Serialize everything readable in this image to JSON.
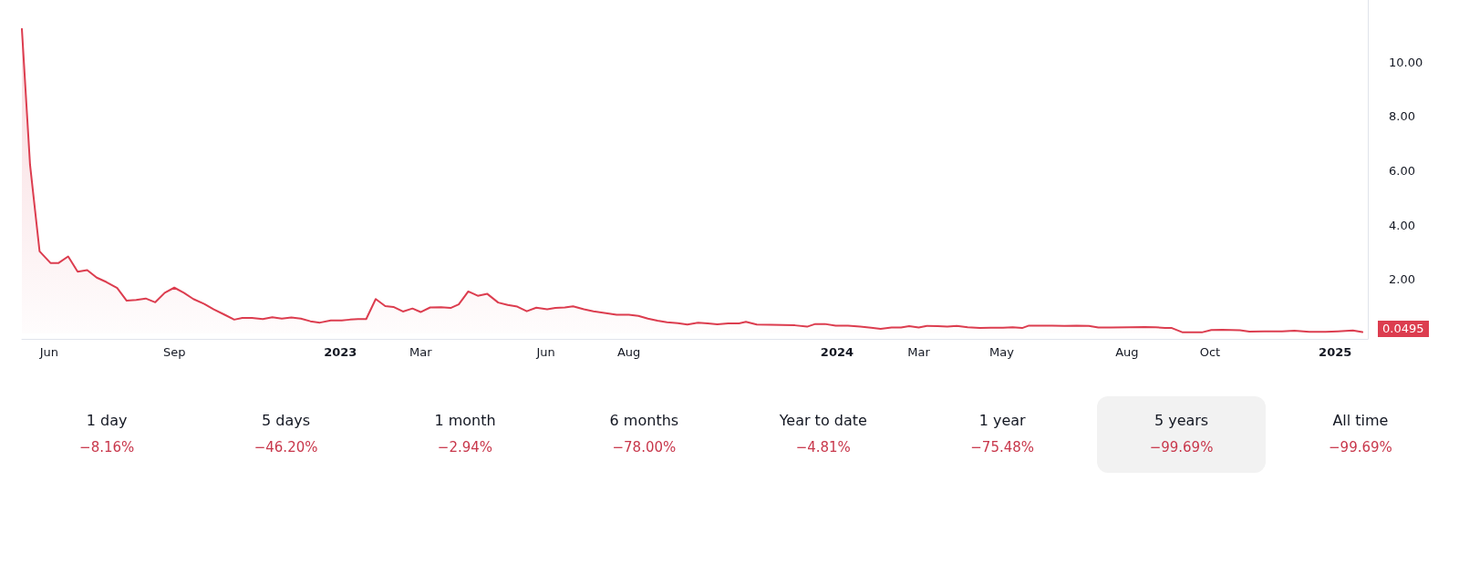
{
  "chart_data": {
    "type": "area",
    "color": "#dc3d4f",
    "x": [
      "2022-05-12",
      "2022-05-18",
      "2022-05-25",
      "2022-06-02",
      "2022-06-08",
      "2022-06-15",
      "2022-06-22",
      "2022-06-29",
      "2022-07-06",
      "2022-07-13",
      "2022-07-21",
      "2022-07-28",
      "2022-08-04",
      "2022-08-11",
      "2022-08-18",
      "2022-08-25",
      "2022-09-01",
      "2022-09-08",
      "2022-09-15",
      "2022-09-23",
      "2022-09-30",
      "2022-10-08",
      "2022-10-15",
      "2022-10-21",
      "2022-10-28",
      "2022-11-05",
      "2022-11-12",
      "2022-11-19",
      "2022-11-26",
      "2022-12-03",
      "2022-12-10",
      "2022-12-17",
      "2022-12-25",
      "2023-01-02",
      "2023-01-08",
      "2023-01-14",
      "2023-01-20",
      "2023-01-27",
      "2023-02-03",
      "2023-02-09",
      "2023-02-16",
      "2023-02-23",
      "2023-03-01",
      "2023-03-08",
      "2023-03-16",
      "2023-03-23",
      "2023-03-29",
      "2023-04-05",
      "2023-04-12",
      "2023-04-19",
      "2023-04-27",
      "2023-05-04",
      "2023-05-11",
      "2023-05-18",
      "2023-05-25",
      "2023-06-02",
      "2023-06-08",
      "2023-06-15",
      "2023-06-21",
      "2023-06-29",
      "2023-07-06",
      "2023-07-14",
      "2023-07-23",
      "2023-08-01",
      "2023-08-08",
      "2023-08-15",
      "2023-08-22",
      "2023-08-29",
      "2023-09-06",
      "2023-09-13",
      "2023-09-21",
      "2023-09-28",
      "2023-10-05",
      "2023-10-13",
      "2023-10-21",
      "2023-10-26",
      "2023-11-03",
      "2023-11-13",
      "2023-11-22",
      "2023-12-01",
      "2023-12-10",
      "2023-12-16",
      "2023-12-23",
      "2023-12-31",
      "2024-01-09",
      "2024-01-18",
      "2024-01-26",
      "2024-02-02",
      "2024-02-10",
      "2024-02-17",
      "2024-02-23",
      "2024-03-01",
      "2024-03-07",
      "2024-03-15",
      "2024-03-22",
      "2024-03-29",
      "2024-04-06",
      "2024-04-15",
      "2024-04-23",
      "2024-05-02",
      "2024-05-09",
      "2024-05-16",
      "2024-05-21",
      "2024-05-29",
      "2024-06-07",
      "2024-06-16",
      "2024-06-25",
      "2024-07-04",
      "2024-07-11",
      "2024-07-20",
      "2024-08-03",
      "2024-08-14",
      "2024-08-22",
      "2024-08-29",
      "2024-09-03",
      "2024-09-11",
      "2024-09-17",
      "2024-09-25",
      "2024-10-02",
      "2024-10-10",
      "2024-10-23",
      "2024-10-30",
      "2024-11-10",
      "2024-11-23",
      "2024-12-02",
      "2024-12-13",
      "2024-12-25",
      "2025-01-03",
      "2025-01-14",
      "2025-01-21"
    ],
    "values": [
      11.23,
      6.22,
      3.03,
      2.6,
      2.6,
      2.84,
      2.28,
      2.34,
      2.06,
      1.9,
      1.68,
      1.21,
      1.24,
      1.29,
      1.15,
      1.5,
      1.69,
      1.5,
      1.27,
      1.09,
      0.89,
      0.69,
      0.51,
      0.57,
      0.57,
      0.53,
      0.6,
      0.55,
      0.59,
      0.55,
      0.45,
      0.4,
      0.48,
      0.48,
      0.51,
      0.53,
      0.53,
      1.27,
      1.01,
      0.98,
      0.81,
      0.92,
      0.79,
      0.96,
      0.97,
      0.94,
      1.07,
      1.55,
      1.39,
      1.46,
      1.14,
      1.05,
      0.99,
      0.82,
      0.95,
      0.89,
      0.94,
      0.96,
      1.0,
      0.89,
      0.82,
      0.76,
      0.69,
      0.69,
      0.65,
      0.55,
      0.47,
      0.41,
      0.38,
      0.33,
      0.4,
      0.37,
      0.34,
      0.37,
      0.37,
      0.43,
      0.33,
      0.32,
      0.31,
      0.3,
      0.25,
      0.35,
      0.35,
      0.29,
      0.29,
      0.25,
      0.21,
      0.17,
      0.22,
      0.22,
      0.27,
      0.22,
      0.28,
      0.27,
      0.25,
      0.28,
      0.23,
      0.2,
      0.21,
      0.21,
      0.23,
      0.2,
      0.29,
      0.29,
      0.29,
      0.28,
      0.29,
      0.28,
      0.22,
      0.22,
      0.23,
      0.24,
      0.23,
      0.2,
      0.2,
      0.04,
      0.04,
      0.04,
      0.13,
      0.14,
      0.12,
      0.07,
      0.08,
      0.08,
      0.1,
      0.06,
      0.06,
      0.08,
      0.11,
      0.0495
    ],
    "xlim": [
      "2022-05-12",
      "2025-01-25"
    ],
    "xticks": [
      {
        "value": "2022-06-01",
        "label": "Jun"
      },
      {
        "value": "2022-09-01",
        "label": "Sep"
      },
      {
        "value": "2023-01-01",
        "label": "2023"
      },
      {
        "value": "2023-03-01",
        "label": "Mar"
      },
      {
        "value": "2023-06-01",
        "label": "Jun"
      },
      {
        "value": "2023-08-01",
        "label": "Aug"
      },
      {
        "value": "2024-01-01",
        "label": "2024"
      },
      {
        "value": "2024-03-01",
        "label": "Mar"
      },
      {
        "value": "2024-05-01",
        "label": "May"
      },
      {
        "value": "2024-08-01",
        "label": "Aug"
      },
      {
        "value": "2024-10-01",
        "label": "Oct"
      },
      {
        "value": "2025-01-01",
        "label": "2025"
      }
    ],
    "ylim": [
      -0.2,
      12.3
    ],
    "yticks": [
      {
        "value": 2,
        "label": "2.00"
      },
      {
        "value": 4,
        "label": "4.00"
      },
      {
        "value": 6,
        "label": "6.00"
      },
      {
        "value": 8,
        "label": "8.00"
      },
      {
        "value": 10,
        "label": "10.00"
      }
    ],
    "annotations": [
      "1 day",
      "−8.16%",
      "5 days",
      "−46.20%",
      "1 month",
      "−2.94%",
      "6 months",
      "−78.00%",
      "Year to date",
      "−4.81%",
      "1 year",
      "−75.48%",
      "5 years",
      "−99.69%",
      "All time",
      "−99.69%",
      {
        "text": "0.0495",
        "x": "2025-01-21",
        "y": 0.0495
      }
    ]
  }
}
